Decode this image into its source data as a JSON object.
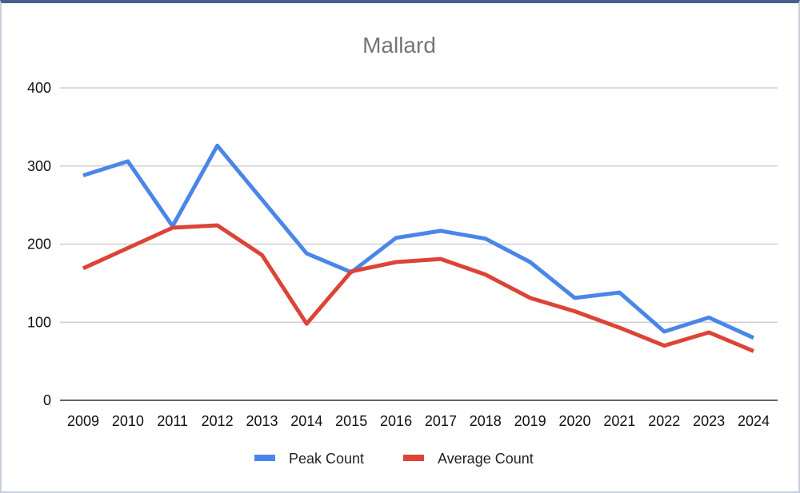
{
  "chart_data": {
    "type": "line",
    "title": "Mallard",
    "xlabel": "",
    "ylabel": "",
    "ylim": [
      0,
      400
    ],
    "yticks": [
      "0",
      "100",
      "200",
      "300",
      "400"
    ],
    "categories": [
      "2009",
      "2010",
      "2011",
      "2012",
      "2013",
      "2014",
      "2015",
      "2016",
      "2017",
      "2018",
      "2019",
      "2020",
      "2021",
      "2022",
      "2023",
      "2024"
    ],
    "series": [
      {
        "name": "Peak Count",
        "color": "#4a86e8",
        "values": [
          288,
          306,
          223,
          326,
          257,
          188,
          164,
          208,
          217,
          207,
          177,
          131,
          138,
          88,
          106,
          80
        ]
      },
      {
        "name": "Average Count",
        "color": "#db4437",
        "values": [
          169,
          195,
          221,
          224,
          186,
          98,
          165,
          177,
          181,
          161,
          131,
          114,
          93,
          70,
          87,
          63
        ]
      }
    ],
    "legend_position": "bottom",
    "grid": true
  }
}
